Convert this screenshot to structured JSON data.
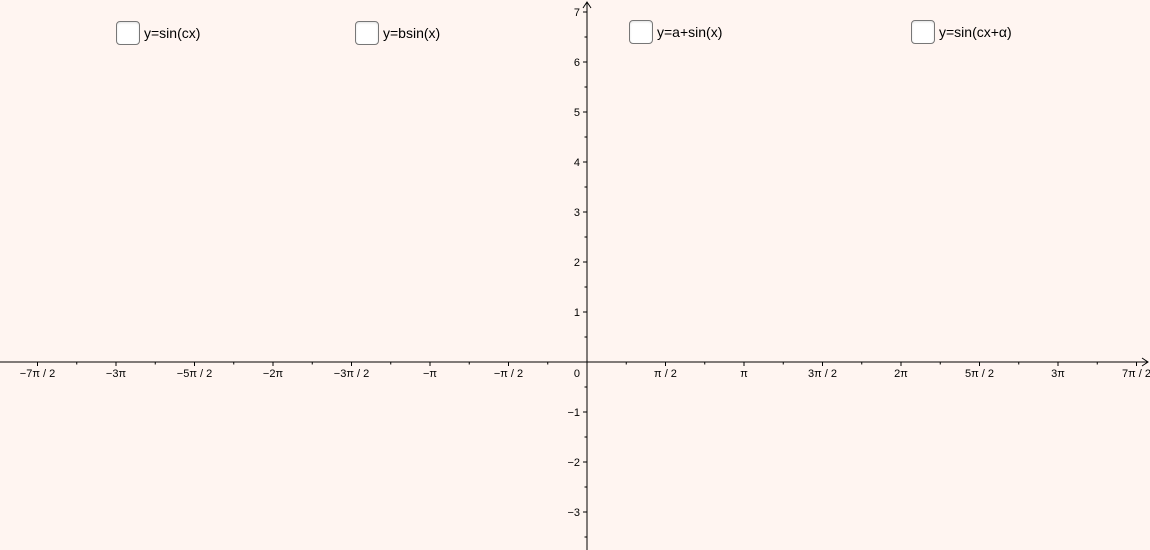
{
  "toolbar": {
    "checkboxes": [
      {
        "label": "y=sin(cx)",
        "checked": false
      },
      {
        "label": "y=bsin(x)",
        "checked": false
      },
      {
        "label": "y=a+sin(x)",
        "checked": false
      },
      {
        "label": "y=sin(cx+α)",
        "checked": false
      }
    ]
  },
  "axes": {
    "origin_label": "0",
    "x_range": [
      -11.76,
      11.0
    ],
    "y_range": [
      -3.7,
      7.2
    ],
    "x_ticks": [
      {
        "value": -10.9956,
        "label": "−7π / 2"
      },
      {
        "value": -9.4248,
        "label": "−3π"
      },
      {
        "value": -7.854,
        "label": "−5π / 2"
      },
      {
        "value": -6.2832,
        "label": "−2π"
      },
      {
        "value": -4.7124,
        "label": "−3π / 2"
      },
      {
        "value": -3.1416,
        "label": "−π"
      },
      {
        "value": -1.5708,
        "label": "−π / 2"
      },
      {
        "value": 1.5708,
        "label": "π / 2"
      },
      {
        "value": 3.1416,
        "label": "π"
      },
      {
        "value": 4.7124,
        "label": "3π / 2"
      },
      {
        "value": 6.2832,
        "label": "2π"
      },
      {
        "value": 7.854,
        "label": "5π / 2"
      },
      {
        "value": 9.4248,
        "label": "3π"
      },
      {
        "value": 10.9956,
        "label": "7π / 2"
      }
    ],
    "y_ticks": [
      {
        "value": 7,
        "label": "7"
      },
      {
        "value": 6,
        "label": "6"
      },
      {
        "value": 5,
        "label": "5"
      },
      {
        "value": 4,
        "label": "4"
      },
      {
        "value": 3,
        "label": "3"
      },
      {
        "value": 2,
        "label": "2"
      },
      {
        "value": 1,
        "label": "1"
      },
      {
        "value": -1,
        "label": "−1"
      },
      {
        "value": -2,
        "label": "−2"
      },
      {
        "value": -3,
        "label": "−3"
      }
    ]
  }
}
